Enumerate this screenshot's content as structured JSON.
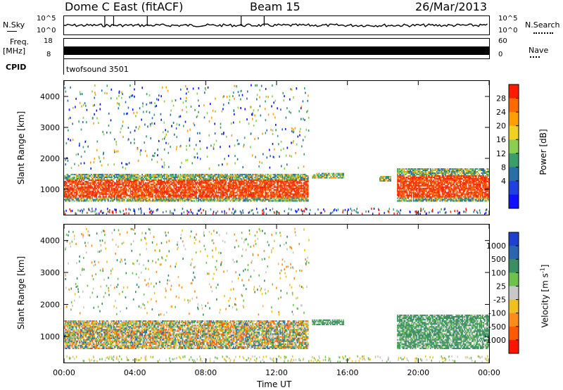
{
  "header": {
    "station": "Dome C East (fitACF)",
    "beam": "Beam 15",
    "date": "26/Mar/2013"
  },
  "panels": {
    "nsky_label": "N.Sky",
    "nsky_ticks": [
      "10^5",
      "10^0"
    ],
    "nsearch_label": "N.Search",
    "freq_label": "Freq.",
    "freq_unit": "[MHz]",
    "freq_ticks": [
      "18",
      "8"
    ],
    "nave_label": "Nave",
    "nave_ticks": [
      "60",
      "0"
    ],
    "cpid_label": "CPID",
    "cpid_value": "twofsound 3501"
  },
  "chart_data": [
    {
      "type": "heatmap",
      "name": "power",
      "ylabel": "Slant Range [km]",
      "yticks": [
        1000,
        2000,
        3000,
        4000
      ],
      "ylim": [
        180,
        4500
      ],
      "xticks": [
        "00:00",
        "04:00",
        "08:00",
        "12:00",
        "16:00",
        "20:00",
        "00:00"
      ],
      "xlim_hours": [
        0,
        24
      ],
      "colorbar_label": "Power [dB]",
      "colorbar_ticks": [
        "28",
        "24",
        "20",
        "16",
        "12",
        "8",
        "4"
      ],
      "colorbar_colors": [
        "#ff1a00",
        "#ff6a00",
        "#ffa000",
        "#f0d020",
        "#8ad050",
        "#3a9e6a",
        "#2a6ea8",
        "#2040e0",
        "#1010ff"
      ],
      "bands": [
        {
          "from": 0,
          "to": 13.8,
          "range": [
            600,
            1500
          ],
          "level": "high"
        },
        {
          "from": 14.0,
          "to": 15.8,
          "range": [
            1350,
            1500
          ],
          "level": "mid"
        },
        {
          "from": 17.8,
          "to": 18.4,
          "range": [
            1250,
            1400
          ],
          "level": "mid"
        },
        {
          "from": 18.8,
          "to": 24,
          "range": [
            600,
            1650
          ],
          "level": "high"
        }
      ]
    },
    {
      "type": "heatmap",
      "name": "velocity",
      "ylabel": "Slant Range [km]",
      "yticks": [
        1000,
        2000,
        3000,
        4000
      ],
      "ylim": [
        180,
        4500
      ],
      "xticks": [
        "00:00",
        "04:00",
        "08:00",
        "12:00",
        "16:00",
        "20:00",
        "00:00"
      ],
      "xlim_hours": [
        0,
        24
      ],
      "xlabel": "Time UT",
      "colorbar_label": "Velocity [m s",
      "colorbar_sup": "-1",
      "colorbar_ticks": [
        "1000",
        "500",
        "100",
        "25",
        "-25",
        "-100",
        "-500",
        "-1000"
      ],
      "colorbar_colors": [
        "#1f3fd0",
        "#2a66b0",
        "#3a8f62",
        "#6cc24a",
        "#c8c8c8",
        "#f0c020",
        "#ff8c1a",
        "#ff5a00",
        "#ff1400"
      ],
      "bands": [
        {
          "from": 0,
          "to": 13.8,
          "range": [
            600,
            1500
          ],
          "level": "mix"
        },
        {
          "from": 14.0,
          "to": 15.8,
          "range": [
            1350,
            1500
          ],
          "level": "green"
        },
        {
          "from": 18.8,
          "to": 24,
          "range": [
            600,
            1650
          ],
          "level": "green"
        }
      ]
    }
  ]
}
